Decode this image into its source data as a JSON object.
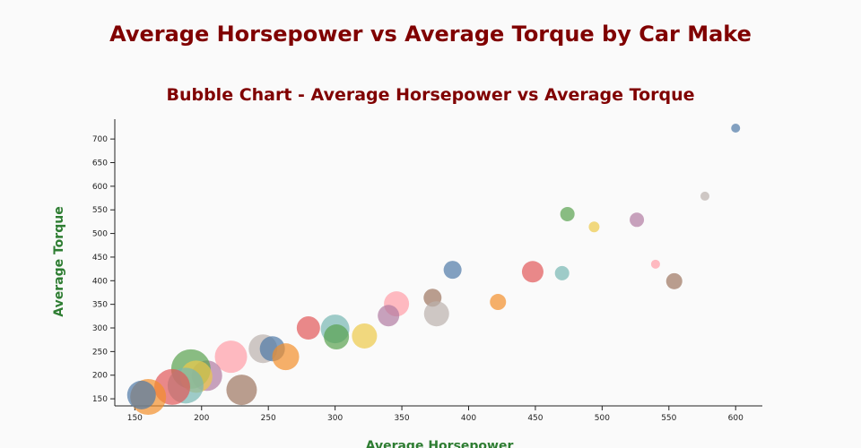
{
  "header": {
    "title": "Average Horsepower vs Average Torque by Car Make"
  },
  "chart_data": {
    "type": "bubble",
    "title": "Bubble Chart - Average Horsepower vs Average Torque",
    "x_label": "Average Horsepower",
    "y_label": "Average Torque",
    "xlim": [
      135,
      620
    ],
    "ylim": [
      135,
      742
    ],
    "xticks": [
      150,
      200,
      250,
      300,
      350,
      400,
      450,
      500,
      550,
      600
    ],
    "yticks": [
      150,
      200,
      250,
      300,
      350,
      400,
      450,
      500,
      550,
      600,
      650,
      700
    ],
    "series": [
      {
        "x": [
          600,
          577,
          526,
          494,
          474,
          540,
          554,
          470,
          448,
          388,
          422,
          373,
          376,
          346,
          340,
          322,
          300,
          301,
          280,
          246,
          253,
          263,
          222,
          204,
          192,
          196,
          188,
          178,
          230,
          160,
          155
        ],
        "values": [
          723,
          579,
          529,
          514,
          541,
          435,
          399,
          416,
          419,
          423,
          355,
          364,
          330,
          351,
          326,
          283,
          298,
          281,
          300,
          256,
          256,
          239,
          239,
          199,
          213,
          197,
          178,
          175,
          169,
          154,
          158
        ],
        "sizes": [
          5,
          5,
          8,
          6,
          8,
          5,
          9,
          8,
          12,
          10,
          9,
          10,
          14,
          14,
          12,
          14,
          16,
          14,
          13,
          16,
          14,
          15,
          18,
          17,
          22,
          18,
          20,
          20,
          17,
          20,
          16
        ],
        "colors": [
          "#4e79a7",
          "#bab0ac",
          "#b07aa1",
          "#edc948",
          "#59a14f",
          "#ff9da7",
          "#9c755f",
          "#76b7b2",
          "#e15759",
          "#4e79a7",
          "#f28e2b",
          "#9c755f",
          "#bab0ac",
          "#ff9da7",
          "#b07aa1",
          "#edc948",
          "#76b7b2",
          "#59a14f",
          "#e15759",
          "#bab0ac",
          "#4e79a7",
          "#f28e2b",
          "#ff9da7",
          "#b07aa1",
          "#59a14f",
          "#edc948",
          "#76b7b2",
          "#e15759",
          "#9c755f",
          "#f28e2b",
          "#4e79a7"
        ]
      }
    ]
  }
}
